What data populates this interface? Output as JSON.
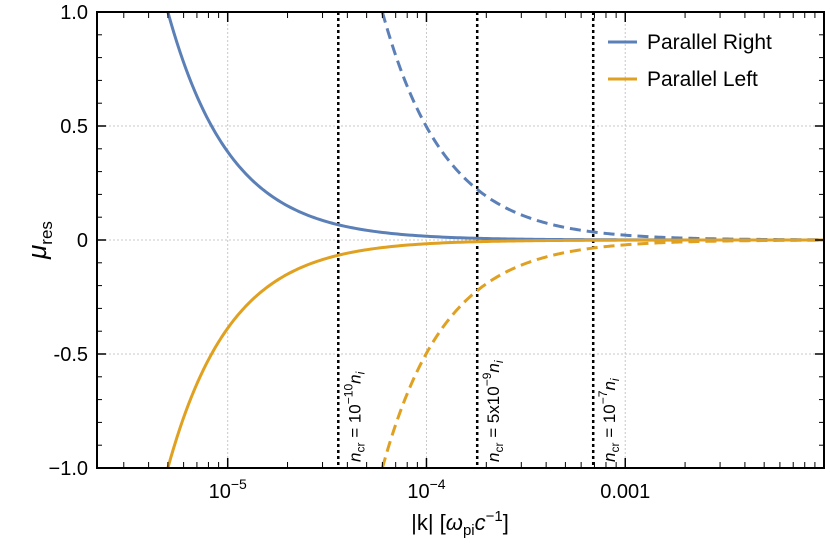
{
  "chart_data": {
    "type": "line",
    "title": "",
    "xlabel": "|k| [ω_pi c^-1]",
    "xlabel_parts": {
      "main": "|k| [",
      "omega": "ω",
      "omega_sub": "pi",
      "c": "c",
      "c_sup": "−1",
      "close": "]"
    },
    "ylabel": "μ_res",
    "ylabel_parts": {
      "mu": "μ",
      "sub": "res"
    },
    "x_scale": "log",
    "xlim": [
      2.2e-06,
      0.01
    ],
    "ylim": [
      -1.0,
      1.0
    ],
    "y_ticks": [
      {
        "value": 1.0,
        "label": "1.0"
      },
      {
        "value": 0.5,
        "label": "0.5"
      },
      {
        "value": 0.0,
        "label": "0"
      },
      {
        "value": -0.5,
        "label": "-0.5"
      },
      {
        "value": -1.0,
        "label": "−1.0"
      }
    ],
    "x_ticks": [
      {
        "value": 1e-05,
        "base": "10",
        "exp": "−5"
      },
      {
        "value": 0.0001,
        "base": "10",
        "exp": "−4"
      },
      {
        "value": 0.001,
        "label": "0.001"
      }
    ],
    "grid": true,
    "legend": {
      "position": "top-right",
      "entries": [
        {
          "name": "Parallel Right",
          "color": "#5b7fb7"
        },
        {
          "name": "Parallel Left",
          "color": "#e0a020"
        }
      ]
    },
    "series": [
      {
        "name": "Parallel Right",
        "style": "solid",
        "color": "#5b7fb7",
        "x0": 5e-06,
        "y0": 1.0,
        "power": 1.37,
        "sign": 1
      },
      {
        "name": "Parallel Right",
        "style": "dashed",
        "color": "#5b7fb7",
        "x0": 6e-05,
        "y0": 1.0,
        "power": 1.37,
        "sign": 1
      },
      {
        "name": "Parallel Left",
        "style": "solid",
        "color": "#e0a020",
        "x0": 5e-06,
        "y0": 1.0,
        "power": 1.37,
        "sign": -1
      },
      {
        "name": "Parallel Left",
        "style": "dashed",
        "color": "#e0a020",
        "x0": 6e-05,
        "y0": 1.0,
        "power": 1.37,
        "sign": -1
      }
    ],
    "vlines": [
      {
        "x": 3.6e-05,
        "label_base": "= 10",
        "label_exp": "−10"
      },
      {
        "x": 0.00018,
        "label_base": "= 5x10",
        "label_exp": "−9"
      },
      {
        "x": 0.00069,
        "label_base": "= 10",
        "label_exp": "−7"
      }
    ],
    "vline_label_parts": {
      "n": "n",
      "n_sub": "cr",
      "ni": "n",
      "ni_sub": "i"
    }
  }
}
